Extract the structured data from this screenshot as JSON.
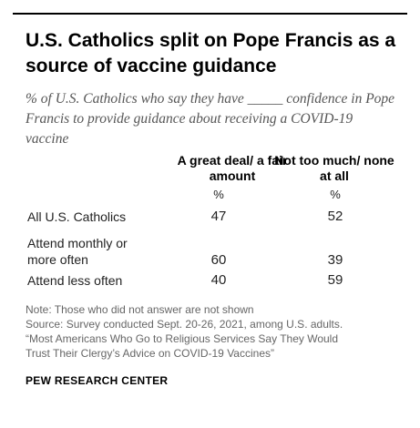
{
  "title": "U.S. Catholics split on Pope Francis as a source of vaccine guidance",
  "subtitle": "% of U.S. Catholics who say they have _____ confidence in Pope Francis to provide guidance about receiving a COVID-19 vaccine",
  "chart_data": {
    "type": "table",
    "columns": [
      {
        "label": "A great deal/ a fair amount",
        "unit": "%"
      },
      {
        "label": "Not too much/ none at all",
        "unit": "%"
      }
    ],
    "rows": [
      {
        "label": "All U.S. Catholics",
        "values": [
          47,
          52
        ]
      },
      {
        "label": "Attend monthly or more often",
        "values": [
          60,
          39
        ]
      },
      {
        "label": "Attend less often",
        "values": [
          40,
          59
        ]
      }
    ]
  },
  "notes": {
    "note": "Note: Those who did not answer are not shown",
    "source": "Source: Survey conducted Sept. 20-26, 2021, among U.S. adults.",
    "report_line1": "“Most Americans Who Go to Religious Services Say They Would",
    "report_line2": "Trust Their Clergy’s Advice on COVID-19 Vaccines”"
  },
  "org": "PEW RESEARCH CENTER"
}
